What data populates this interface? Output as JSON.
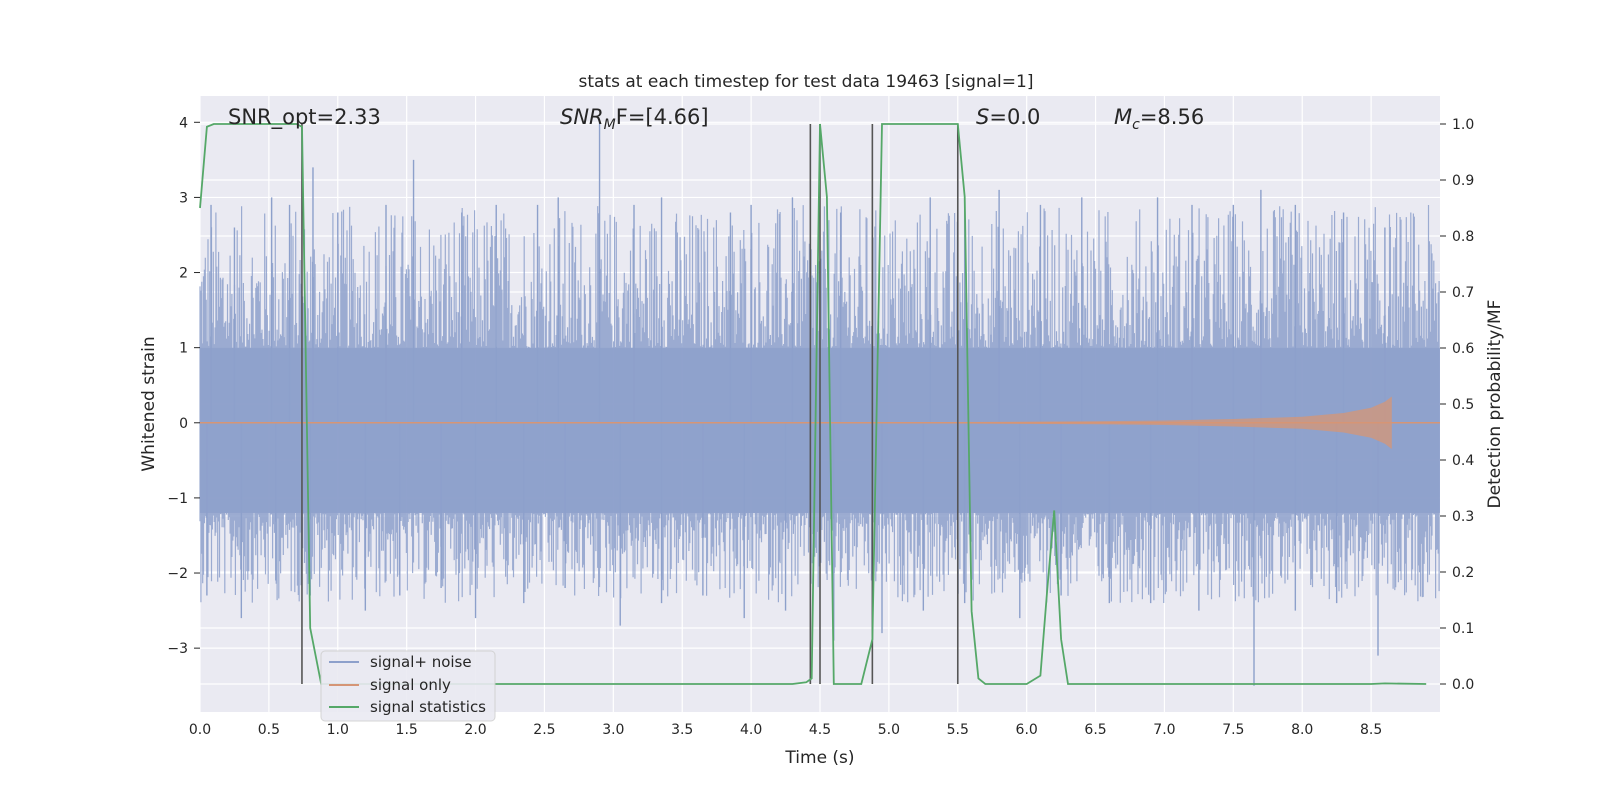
{
  "chart_data": {
    "type": "line",
    "title": "stats at each timestep for test data 19463 [signal=1]",
    "xlabel": "Time (s)",
    "ylabel_left": "Whitened strain",
    "ylabel_right": "Detection probability/MF",
    "xlim": [
      0.0,
      9.0
    ],
    "ylim_left": [
      -3.85,
      4.35
    ],
    "ylim_right": [
      -0.05,
      1.05
    ],
    "x_ticks": [
      "0.0",
      "0.5",
      "1.0",
      "1.5",
      "2.0",
      "2.5",
      "3.0",
      "3.5",
      "4.0",
      "4.5",
      "5.0",
      "5.5",
      "6.0",
      "6.5",
      "7.0",
      "7.5",
      "8.0",
      "8.5"
    ],
    "y_left_ticks": [
      "4",
      "3",
      "2",
      "1",
      "0",
      "−1",
      "−2",
      "−3"
    ],
    "y_right_ticks": [
      "1.0",
      "0.9",
      "0.8",
      "0.7",
      "0.6",
      "0.5",
      "0.4",
      "0.3",
      "0.2",
      "0.1",
      "0.0"
    ],
    "grid": true,
    "legend_placement": "lower-left",
    "annotations": {
      "snr_opt": "SNR_opt=2.33",
      "snr_mf_base": "SNR",
      "snr_mf_sub": "M",
      "snr_mf_rest": "F=[4.66]",
      "s_var": "S",
      "s_rest": "=0.0",
      "mc_base": "M",
      "mc_sub": "c",
      "mc_rest": "=8.56"
    },
    "series": [
      {
        "name": "signal+ noise",
        "color": "#8da0cb",
        "axis": "left",
        "envelope_note": "dense noise band roughly between -2.7 and 3.3, peaks to 4.0 near t=2.9",
        "peaks_x": [
          0.08,
          0.25,
          0.52,
          0.65,
          0.82,
          1.0,
          1.35,
          1.55,
          1.9,
          2.15,
          2.45,
          2.6,
          2.9,
          3.15,
          3.35,
          3.85,
          4.0,
          4.3,
          4.65,
          5.3,
          5.55,
          5.8,
          6.1,
          6.4,
          6.95,
          7.2,
          7.5,
          7.7,
          7.95,
          8.3,
          8.6
        ],
        "peaks_y": [
          2.9,
          2.6,
          3.0,
          2.9,
          3.4,
          2.8,
          2.9,
          3.5,
          2.8,
          2.9,
          2.9,
          3.0,
          4.0,
          2.9,
          3.0,
          2.8,
          2.9,
          3.0,
          2.8,
          3.0,
          3.0,
          3.1,
          2.9,
          3.0,
          3.0,
          2.9,
          2.9,
          3.1,
          2.9,
          2.8,
          2.6
        ],
        "troughs_x": [
          0.05,
          0.3,
          0.55,
          0.8,
          1.2,
          1.45,
          1.75,
          2.0,
          2.35,
          2.65,
          3.05,
          3.35,
          3.65,
          3.95,
          4.25,
          4.6,
          4.95,
          5.25,
          5.55,
          5.95,
          6.25,
          6.6,
          6.9,
          7.25,
          7.65,
          7.95,
          8.25,
          8.55
        ],
        "troughs_y": [
          -2.3,
          -2.6,
          -2.1,
          -2.3,
          -2.5,
          -2.3,
          -2.2,
          -2.6,
          -2.4,
          -2.2,
          -2.7,
          -2.4,
          -2.3,
          -2.6,
          -2.5,
          -2.9,
          -2.8,
          -2.5,
          -2.4,
          -2.6,
          -2.3,
          -2.4,
          -2.4,
          -2.5,
          -3.5,
          -2.5,
          -2.4,
          -3.1
        ]
      },
      {
        "name": "signal only",
        "color": "#d59576",
        "axis": "left",
        "x": [
          0.0,
          5.5,
          6.5,
          7.0,
          7.5,
          8.0,
          8.3,
          8.5,
          8.6,
          8.65
        ],
        "amplitude": [
          0.01,
          0.01,
          0.02,
          0.03,
          0.05,
          0.08,
          0.13,
          0.2,
          0.28,
          0.35
        ]
      },
      {
        "name": "signal statistics",
        "color": "#55a868",
        "axis": "right",
        "x": [
          0.0,
          0.05,
          0.1,
          0.2,
          0.3,
          0.4,
          0.5,
          0.6,
          0.7,
          0.74,
          0.8,
          0.88,
          0.95,
          1.0,
          2.0,
          3.0,
          4.0,
          4.3,
          4.4,
          4.44,
          4.5,
          4.55,
          4.6,
          4.8,
          4.88,
          4.95,
          5.0,
          5.5,
          5.55,
          5.6,
          5.65,
          5.7,
          5.8,
          6.0,
          6.1,
          6.15,
          6.2,
          6.25,
          6.3,
          7.0,
          8.0,
          8.5,
          8.6,
          8.9
        ],
        "y": [
          0.85,
          0.995,
          1.0,
          1.0,
          1.0,
          1.0,
          1.0,
          1.0,
          1.0,
          0.995,
          0.1,
          0.0,
          0.0,
          0.0,
          0.0,
          0.0,
          0.0,
          0.0,
          0.003,
          0.01,
          1.0,
          0.87,
          0.0,
          0.0,
          0.08,
          1.0,
          1.0,
          1.0,
          0.87,
          0.13,
          0.01,
          0.0,
          0.0,
          0.0,
          0.015,
          0.17,
          0.31,
          0.08,
          0.0,
          0.0,
          0.0,
          0.0,
          0.001,
          0.0
        ]
      }
    ],
    "vertical_markers_x": [
      0.74,
      4.43,
      4.5,
      4.88,
      5.5
    ]
  }
}
